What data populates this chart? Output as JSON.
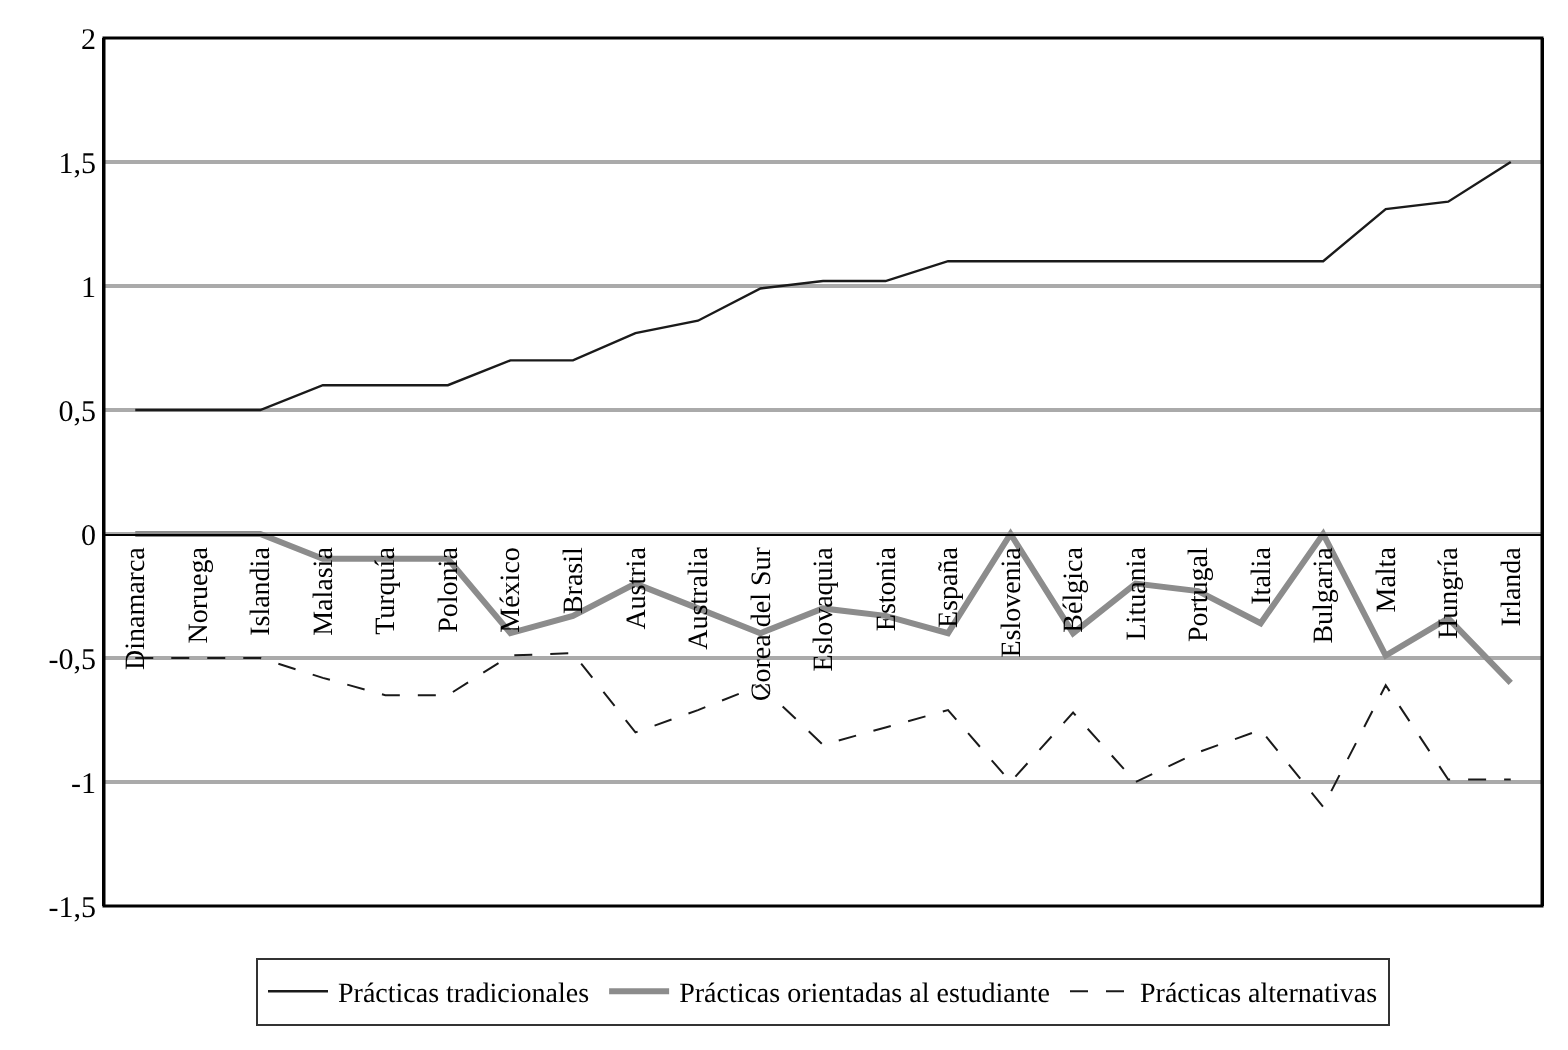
{
  "chart_data": {
    "type": "line",
    "categories": [
      "Dinamarca",
      "Noruega",
      "Islandia",
      "Malasia",
      "Turquía",
      "Polonia",
      "México",
      "Brasil",
      "Austria",
      "Australia",
      "Corea del Sur",
      "Eslovaquia",
      "Estonia",
      "España",
      "Eslovenia",
      "Bélgica",
      "Lituania",
      "Portugal",
      "Italia",
      "Bulgaria",
      "Malta",
      "Hungría",
      "Irlanda"
    ],
    "series": [
      {
        "name": "Prácticas tradicionales",
        "color": "#1a1a1a",
        "line_style": "solid",
        "values": [
          0.5,
          0.5,
          0.5,
          0.6,
          0.6,
          0.6,
          0.7,
          0.7,
          0.81,
          0.86,
          0.99,
          1.02,
          1.02,
          1.1,
          1.1,
          1.1,
          1.1,
          1.1,
          1.1,
          1.1,
          1.31,
          1.34,
          1.5
        ]
      },
      {
        "name": "Prácticas orientadas al estudiante",
        "color": "#8c8c8c",
        "line_style": "solid",
        "values": [
          0,
          0,
          0,
          -0.1,
          -0.1,
          -0.1,
          -0.4,
          -0.33,
          -0.2,
          -0.3,
          -0.4,
          -0.3,
          -0.33,
          -0.4,
          0,
          -0.4,
          -0.2,
          -0.23,
          -0.36,
          0,
          -0.49,
          -0.34,
          -0.6
        ]
      },
      {
        "name": "Prácticas alternativas",
        "color": "#1a1a1a",
        "line_style": "dashed",
        "values": [
          -0.5,
          -0.5,
          -0.5,
          -0.58,
          -0.65,
          -0.65,
          -0.49,
          -0.48,
          -0.8,
          -0.71,
          -0.61,
          -0.85,
          -0.78,
          -0.71,
          -1.0,
          -0.72,
          -1.0,
          -0.88,
          -0.79,
          -1.1,
          -0.61,
          -0.99,
          -0.99
        ]
      }
    ],
    "ylim": [
      -1.5,
      2
    ],
    "yticks": [
      {
        "value": -1.5,
        "label": "-1,5"
      },
      -1,
      {
        "value": -0.5,
        "label": "-0,5"
      },
      0,
      {
        "value": 0.5,
        "label": "0,5"
      },
      1,
      {
        "value": 1.5,
        "label": "1,5"
      },
      2
    ],
    "grid": "y",
    "legend": "bottom",
    "marker": "none"
  }
}
